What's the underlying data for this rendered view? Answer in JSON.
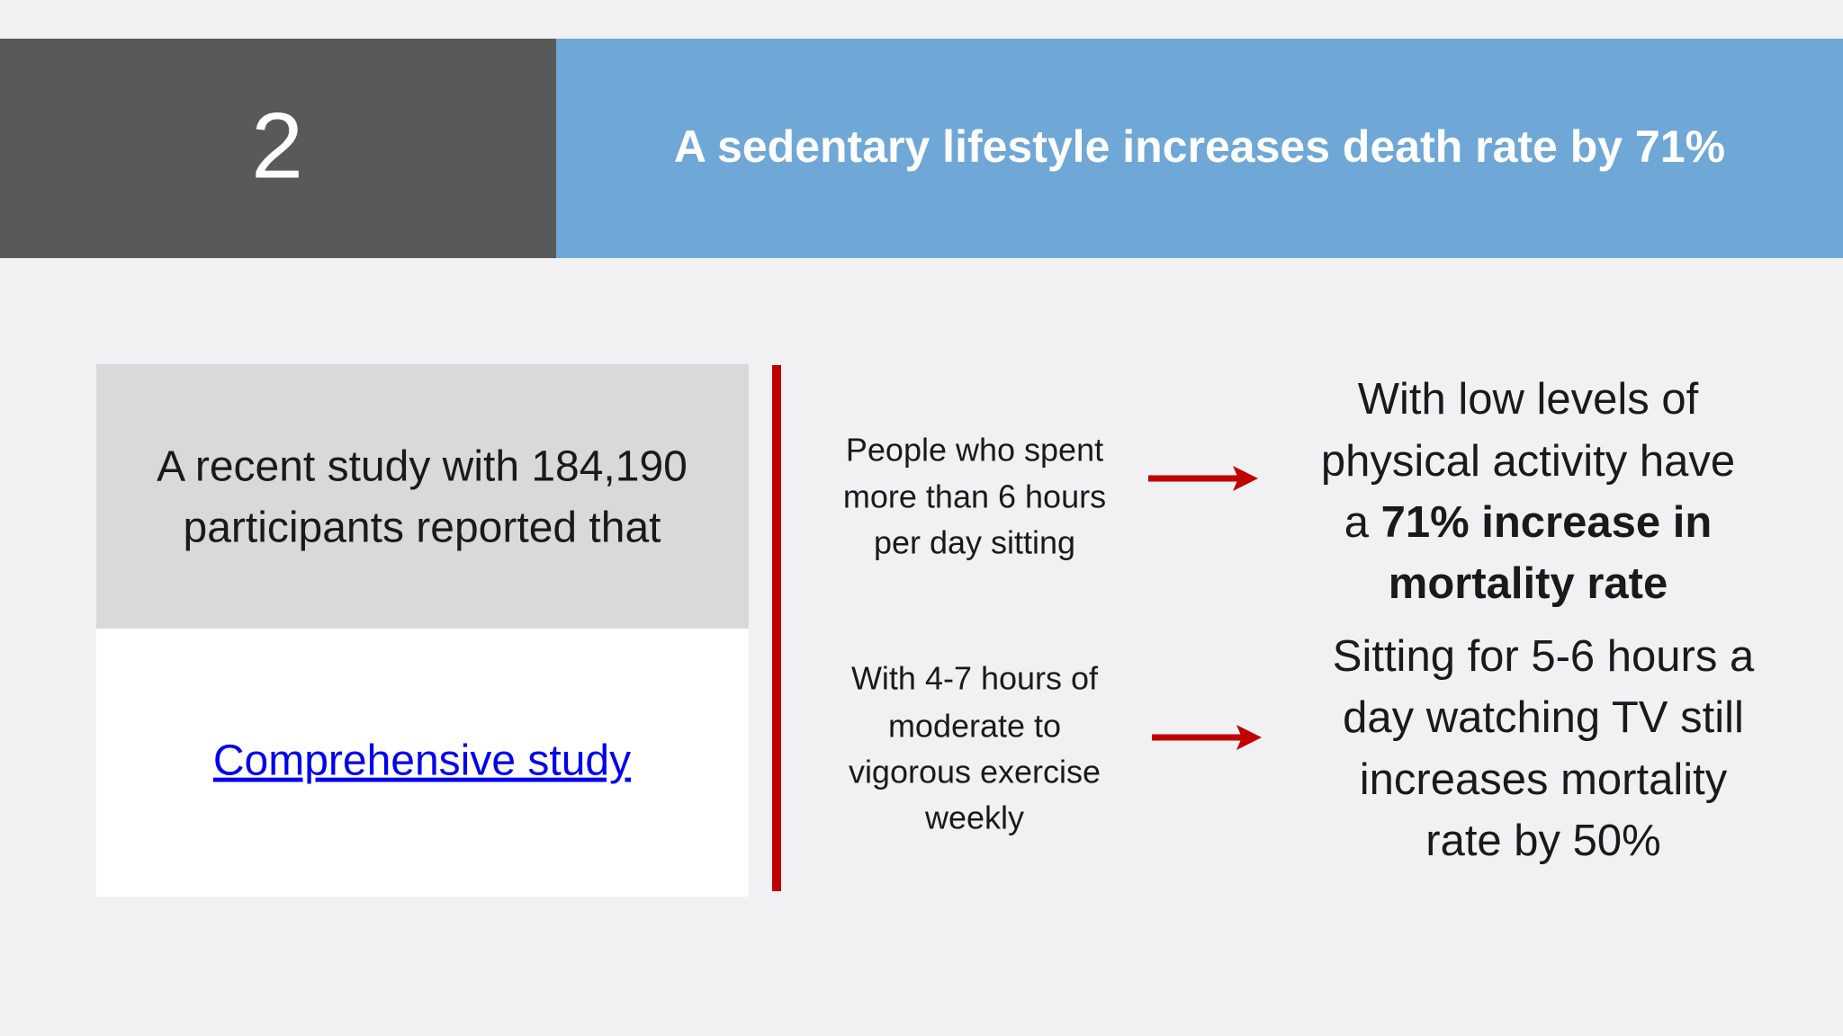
{
  "header": {
    "number": "2",
    "title": "A sedentary lifestyle increases death rate by 71%"
  },
  "study": {
    "lines": [
      "A recent study with 184,190",
      "participants reported that"
    ],
    "link": "Comprehensive study"
  },
  "rows": [
    {
      "condition": [
        "People who spent",
        "more than 6 hours",
        "per day sitting"
      ],
      "outcome": [
        [
          "With low levels of"
        ],
        [
          "physical activity have"
        ],
        [
          "a ",
          "71% increase in"
        ],
        [
          "mortality rate"
        ]
      ]
    },
    {
      "condition": [
        "With 4-7 hours of",
        "moderate to",
        "vigorous exercise",
        "weekly"
      ],
      "outcome": [
        [
          "Sitting for 5-6 hours a"
        ],
        [
          "day watching TV still"
        ],
        [
          "increases mortality"
        ],
        [
          "rate by 50%"
        ]
      ]
    }
  ]
}
